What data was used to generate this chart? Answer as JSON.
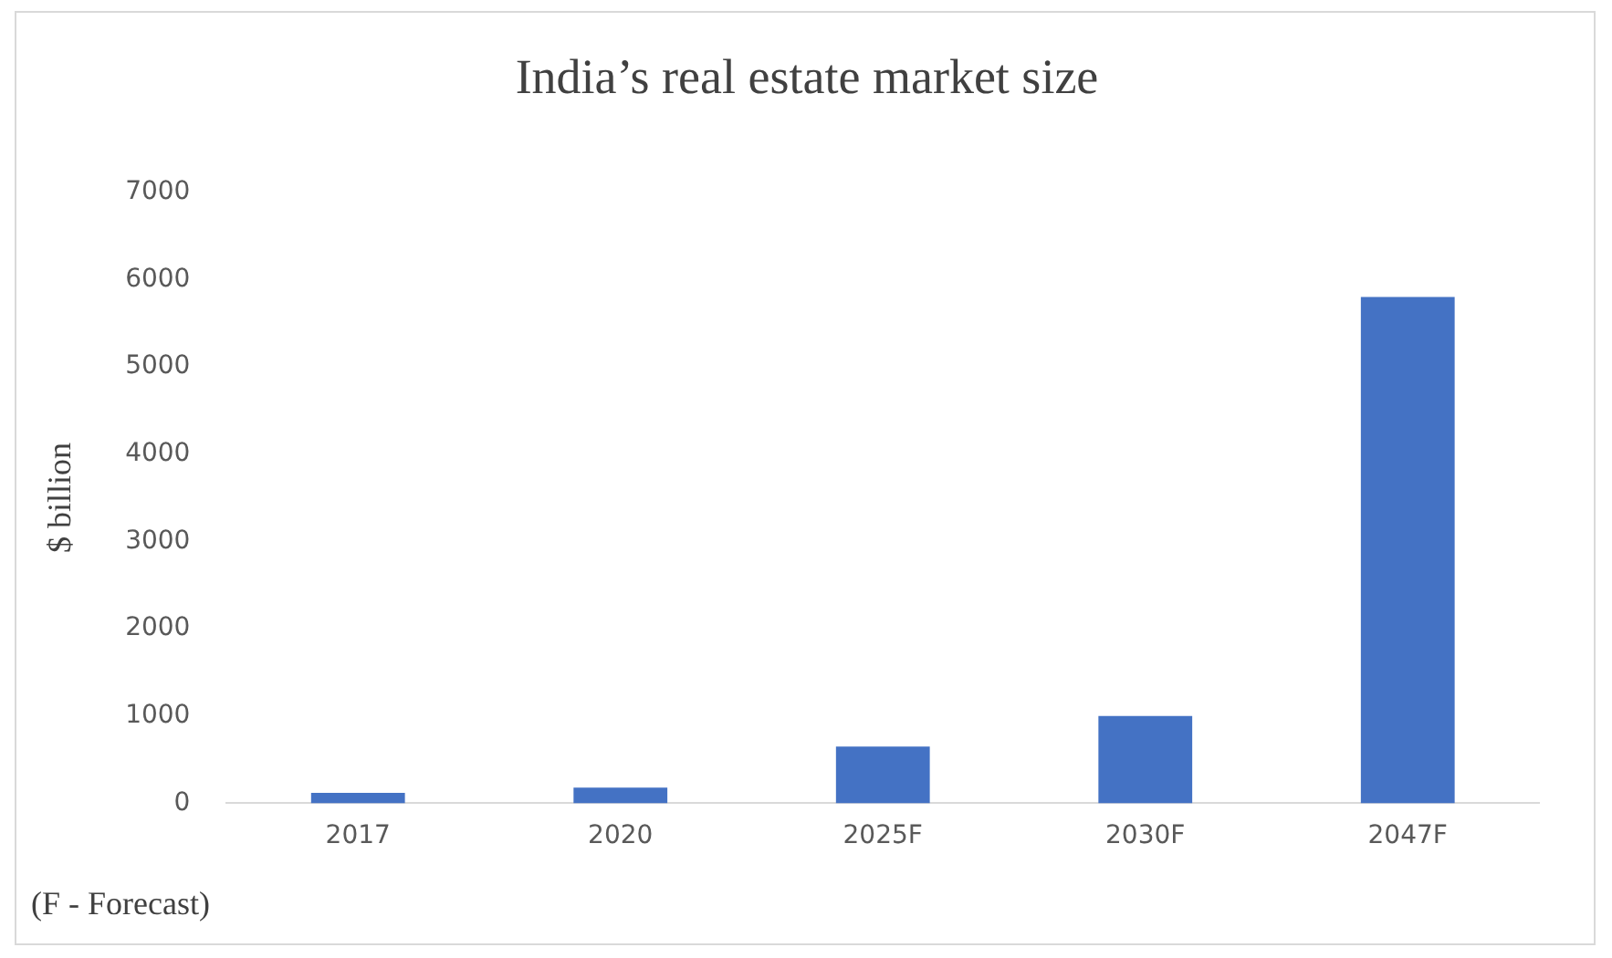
{
  "chart_data": {
    "type": "bar",
    "title": "India’s real estate market size",
    "ylabel": "$ billion",
    "categories": [
      "2017",
      "2020",
      "2025F",
      "2030F",
      "2047F"
    ],
    "values": [
      120,
      180,
      650,
      1000,
      5800
    ],
    "color": "#4472c4",
    "ylim": [
      0,
      7000
    ],
    "yticks": [
      0,
      1000,
      2000,
      3000,
      4000,
      5000,
      6000,
      7000
    ],
    "grid": false,
    "annotations": [
      "(F - Forecast)"
    ]
  }
}
